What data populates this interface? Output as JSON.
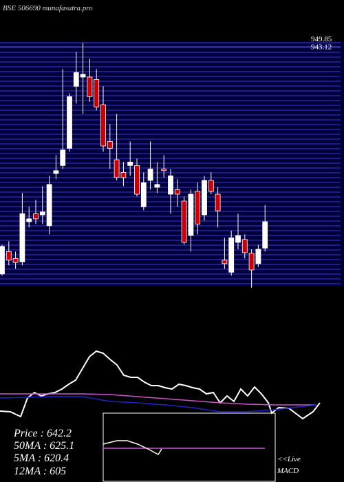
{
  "chart_data": [
    {
      "type": "candlestick",
      "title": "BSE 506690  munafasutra.pro",
      "open": [
        547,
        586,
        574,
        568,
        638,
        652,
        650,
        631,
        722,
        736,
        766,
        874,
        890,
        890,
        886,
        842,
        778,
        746,
        724,
        736,
        736,
        664,
        710,
        698,
        730,
        686,
        694,
        674,
        614,
        691,
        650,
        710,
        686,
        571,
        550,
        602,
        607,
        583,
        565,
        592
      ],
      "high": [
        598,
        604,
        586,
        688,
        664,
        676,
        700,
        718,
        754,
        904,
        862,
        934,
        950,
        922,
        904,
        874,
        808,
        826,
        742,
        778,
        748,
        724,
        778,
        742,
        754,
        730,
        712,
        682,
        694,
        706,
        718,
        724,
        698,
        610,
        622,
        652,
        616,
        590,
        598,
        667
      ],
      "low": [
        544,
        562,
        556,
        562,
        628,
        634,
        634,
        616,
        712,
        730,
        760,
        844,
        826,
        847,
        832,
        760,
        730,
        710,
        700,
        718,
        682,
        658,
        694,
        688,
        715,
        652,
        664,
        598,
        586,
        616,
        640,
        686,
        628,
        556,
        544,
        590,
        574,
        523,
        559,
        586
      ],
      "close": [
        595,
        571,
        567,
        652,
        643,
        643,
        655,
        703,
        727,
        763,
        856,
        898,
        895,
        856,
        838,
        770,
        766,
        715,
        715,
        742,
        686,
        706,
        730,
        703,
        727,
        718,
        686,
        602,
        686,
        634,
        710,
        691,
        657,
        565,
        610,
        614,
        584,
        554,
        590,
        638
      ],
      "up_color": "#ffffff",
      "down_color": "#cc0000",
      "ylim": [
        530,
        950
      ],
      "yticks": [
        {
          "value": 949.85,
          "label": "949.85"
        },
        {
          "value": 943.12,
          "label": "943.12"
        }
      ],
      "grid": true
    },
    {
      "type": "line",
      "series": [
        {
          "color": "#ffffff",
          "x": [
            0,
            15,
            30,
            40,
            50,
            60,
            70,
            80,
            90,
            100,
            110,
            120,
            130,
            140,
            150,
            160,
            170,
            180,
            190,
            200,
            210,
            220,
            230,
            240,
            250,
            260,
            270,
            280,
            290,
            300,
            310,
            320,
            330,
            340,
            350,
            360,
            370,
            380,
            390,
            395,
            405,
            420,
            440,
            455,
            465
          ],
          "values": [
            13,
            12,
            5,
            32,
            40,
            35,
            38,
            40,
            45,
            52,
            58,
            75,
            92,
            100,
            97,
            88,
            80,
            65,
            62,
            62,
            55,
            50,
            50,
            47,
            45,
            52,
            50,
            47,
            45,
            38,
            40,
            25,
            35,
            27,
            45,
            35,
            48,
            38,
            25,
            10,
            18,
            17,
            2,
            12,
            25
          ]
        },
        {
          "color": "#cc55cc",
          "x": [
            0,
            40,
            80,
            120,
            160,
            200,
            240,
            280,
            320,
            360,
            400,
            460
          ],
          "values": [
            38,
            38,
            38,
            38,
            37,
            34,
            31,
            28,
            25,
            23,
            22,
            22
          ]
        },
        {
          "color": "#2222cc",
          "x": [
            0,
            40,
            80,
            120,
            160,
            200,
            240,
            280,
            320,
            360,
            400,
            460
          ],
          "values": [
            32,
            33,
            34,
            34,
            27,
            25,
            22,
            18,
            12,
            12,
            15,
            22
          ]
        }
      ],
      "xlim": [
        0,
        500
      ],
      "ylim": [
        0,
        105
      ],
      "annotations": [
        "Price   : 642.2",
        "50MA : 625.1",
        "5MA : 620.4",
        "12MA : 605"
      ]
    },
    {
      "type": "line",
      "series": [
        {
          "color": "#cc55cc",
          "x": [
            150,
            385
          ],
          "values": [
            49,
            49
          ]
        },
        {
          "color": "#ffffff",
          "x": [
            150,
            170,
            185,
            200,
            215,
            230,
            235
          ],
          "values": [
            55,
            60,
            60,
            55,
            48,
            40,
            48
          ]
        }
      ],
      "xlim": [
        0,
        500
      ],
      "ylim": [
        0,
        100
      ],
      "annotations": [
        "<<Live",
        "MACD"
      ]
    }
  ]
}
